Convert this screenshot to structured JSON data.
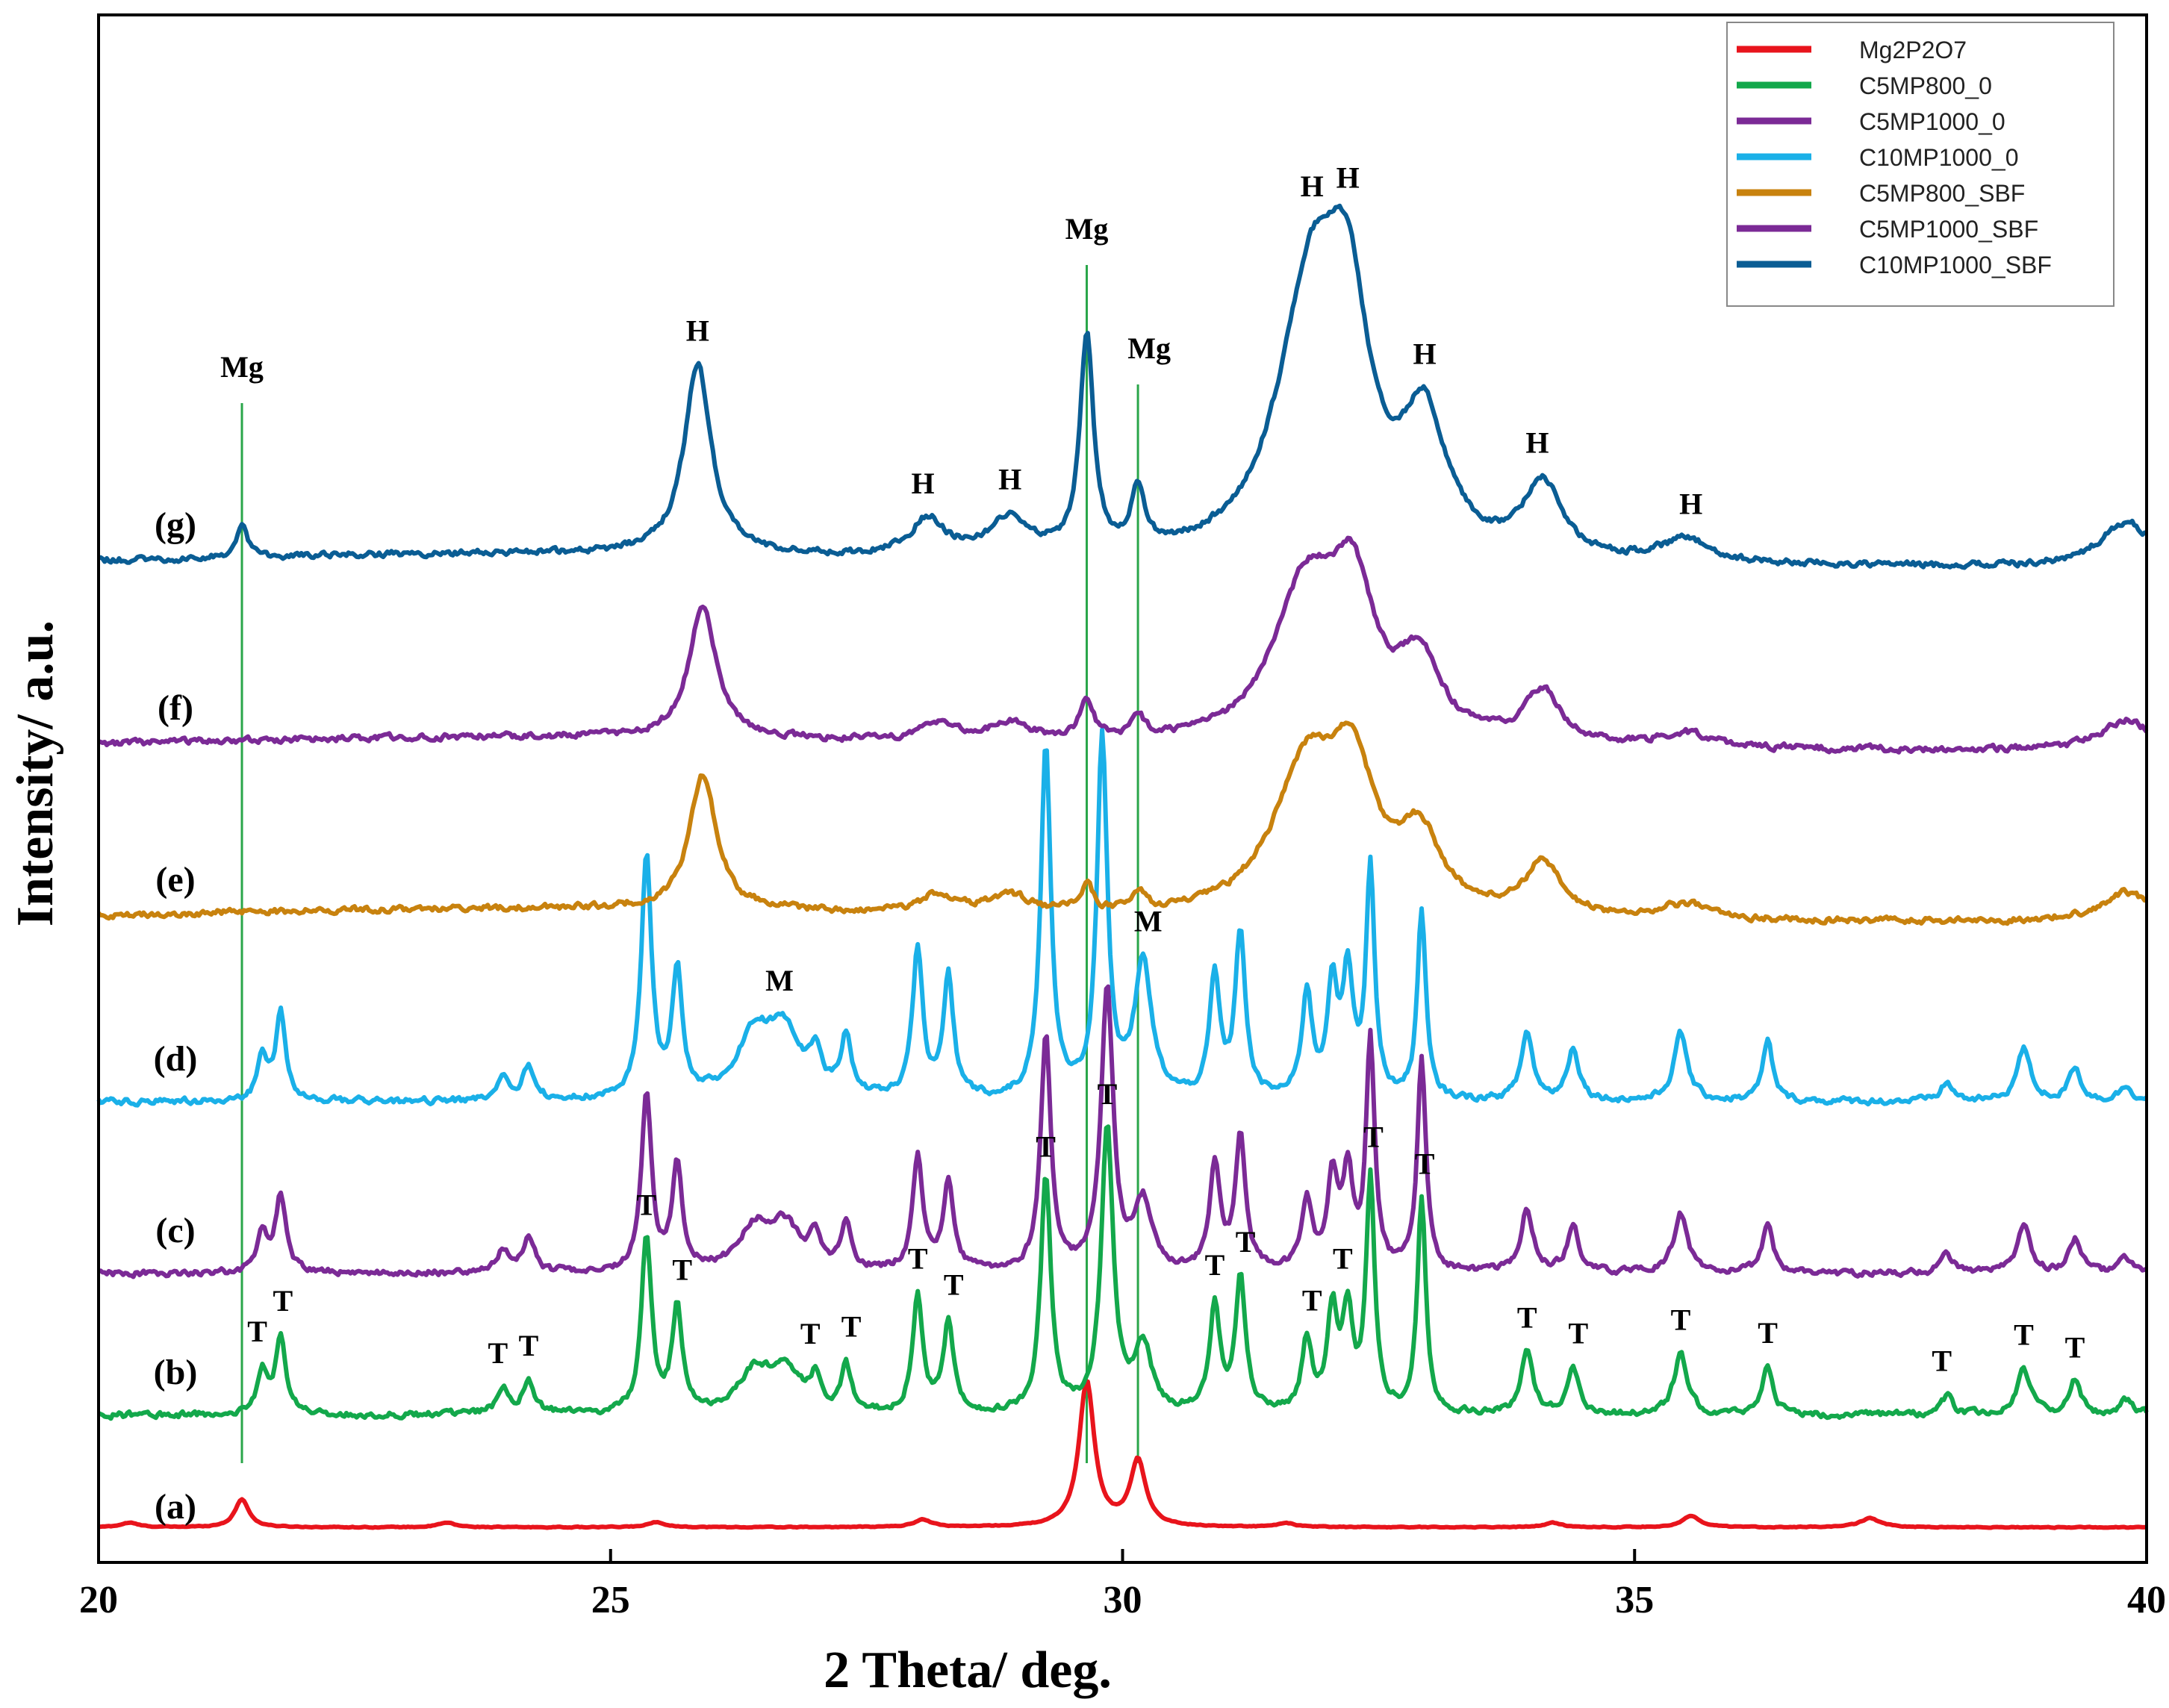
{
  "chart_data": {
    "type": "line",
    "title": "",
    "xlabel": "2 Theta/ deg.",
    "ylabel": "Intensity/ a.u.",
    "xlim": [
      20,
      40
    ],
    "xticks": [
      20,
      25,
      30,
      35,
      40
    ],
    "xtick_labels": [
      "20",
      "25",
      "30",
      "35",
      "40"
    ],
    "grid": false,
    "legend_position": "top-right",
    "series": [
      {
        "name": "Mg2P2O7",
        "tag": "(a)",
        "color": "#e8141c",
        "offset": 0,
        "peaks": [
          [
            21.4,
            38,
            0.08
          ],
          [
            29.65,
            195,
            0.09
          ],
          [
            30.15,
            88,
            0.09
          ],
          [
            35.55,
            15,
            0.1
          ],
          [
            37.3,
            12,
            0.12
          ],
          [
            20.3,
            6,
            0.1
          ],
          [
            23.4,
            6,
            0.1
          ],
          [
            25.45,
            7,
            0.1
          ],
          [
            28.05,
            10,
            0.1
          ],
          [
            31.6,
            5,
            0.1
          ],
          [
            34.2,
            6,
            0.1
          ]
        ]
      },
      {
        "name": "C5MP800_0",
        "tag": "(b)",
        "color": "#13a84b",
        "offset": 150,
        "peaks": [
          [
            21.6,
            55,
            0.06
          ],
          [
            21.78,
            105,
            0.06
          ],
          [
            23.95,
            35,
            0.07
          ],
          [
            24.2,
            45,
            0.07
          ],
          [
            25.35,
            235,
            0.06
          ],
          [
            25.65,
            140,
            0.06
          ],
          [
            26.4,
            50,
            0.18
          ],
          [
            26.7,
            60,
            0.18
          ],
          [
            27.0,
            40,
            0.06
          ],
          [
            27.3,
            60,
            0.06
          ],
          [
            28.0,
            155,
            0.06
          ],
          [
            28.3,
            120,
            0.06
          ],
          [
            29.25,
            315,
            0.06
          ],
          [
            29.85,
            380,
            0.07
          ],
          [
            30.2,
            90,
            0.1
          ],
          [
            30.9,
            140,
            0.06
          ],
          [
            31.15,
            180,
            0.06
          ],
          [
            31.8,
            95,
            0.06
          ],
          [
            32.05,
            130,
            0.06
          ],
          [
            32.2,
            130,
            0.06
          ],
          [
            32.42,
            310,
            0.05
          ],
          [
            32.92,
            290,
            0.05
          ],
          [
            33.95,
            85,
            0.07
          ],
          [
            34.4,
            60,
            0.07
          ],
          [
            35.45,
            80,
            0.08
          ],
          [
            36.3,
            70,
            0.06
          ],
          [
            38.05,
            25,
            0.07
          ],
          [
            38.8,
            60,
            0.08
          ],
          [
            39.3,
            45,
            0.07
          ],
          [
            39.8,
            20,
            0.08
          ]
        ]
      },
      {
        "name": "C5MP1000_0",
        "tag": "(c)",
        "color": "#7b2a96",
        "offset": 340,
        "peaks": [
          [
            21.6,
            55,
            0.06
          ],
          [
            21.78,
            105,
            0.06
          ],
          [
            23.95,
            30,
            0.07
          ],
          [
            24.2,
            45,
            0.07
          ],
          [
            25.35,
            235,
            0.06
          ],
          [
            25.65,
            140,
            0.06
          ],
          [
            26.4,
            55,
            0.18
          ],
          [
            26.7,
            60,
            0.18
          ],
          [
            27.0,
            40,
            0.06
          ],
          [
            27.3,
            60,
            0.06
          ],
          [
            28.0,
            155,
            0.06
          ],
          [
            28.3,
            120,
            0.06
          ],
          [
            29.25,
            315,
            0.06
          ],
          [
            29.85,
            380,
            0.07
          ],
          [
            30.2,
            90,
            0.1
          ],
          [
            30.9,
            140,
            0.06
          ],
          [
            31.15,
            180,
            0.06
          ],
          [
            31.8,
            95,
            0.06
          ],
          [
            32.05,
            120,
            0.06
          ],
          [
            32.2,
            125,
            0.06
          ],
          [
            32.42,
            310,
            0.05
          ],
          [
            32.92,
            290,
            0.05
          ],
          [
            33.95,
            85,
            0.07
          ],
          [
            34.4,
            60,
            0.07
          ],
          [
            35.45,
            80,
            0.08
          ],
          [
            36.3,
            70,
            0.06
          ],
          [
            38.05,
            25,
            0.07
          ],
          [
            38.8,
            60,
            0.08
          ],
          [
            39.3,
            45,
            0.07
          ],
          [
            39.8,
            20,
            0.08
          ]
        ]
      },
      {
        "name": "C10MP1000_0",
        "tag": "(d)",
        "color": "#1ab0e8",
        "offset": 570,
        "peaks": [
          [
            21.6,
            55,
            0.06
          ],
          [
            21.78,
            115,
            0.06
          ],
          [
            23.95,
            35,
            0.07
          ],
          [
            24.2,
            45,
            0.07
          ],
          [
            25.35,
            325,
            0.06
          ],
          [
            25.65,
            170,
            0.06
          ],
          [
            26.4,
            80,
            0.2
          ],
          [
            26.7,
            85,
            0.2
          ],
          [
            27.0,
            50,
            0.06
          ],
          [
            27.3,
            80,
            0.06
          ],
          [
            28.0,
            200,
            0.06
          ],
          [
            28.3,
            160,
            0.06
          ],
          [
            29.25,
            470,
            0.06
          ],
          [
            29.8,
            480,
            0.06
          ],
          [
            30.2,
            180,
            0.1
          ],
          [
            30.9,
            160,
            0.06
          ],
          [
            31.15,
            220,
            0.06
          ],
          [
            31.8,
            140,
            0.06
          ],
          [
            32.05,
            150,
            0.06
          ],
          [
            32.2,
            160,
            0.06
          ],
          [
            32.42,
            310,
            0.05
          ],
          [
            32.92,
            250,
            0.05
          ],
          [
            33.95,
            90,
            0.07
          ],
          [
            34.4,
            70,
            0.07
          ],
          [
            35.45,
            90,
            0.08
          ],
          [
            36.3,
            80,
            0.06
          ],
          [
            38.05,
            25,
            0.07
          ],
          [
            38.8,
            70,
            0.08
          ],
          [
            39.3,
            45,
            0.07
          ],
          [
            39.8,
            20,
            0.08
          ]
        ]
      },
      {
        "name": "C5MP800_SBF",
        "tag": "(e)",
        "color": "#c8820e",
        "offset": 810,
        "peaks": [
          [
            25.9,
            180,
            0.16
          ],
          [
            28.2,
            25,
            0.2
          ],
          [
            28.9,
            25,
            0.25
          ],
          [
            29.65,
            35,
            0.08
          ],
          [
            30.15,
            25,
            0.08
          ],
          [
            31.8,
            200,
            0.4
          ],
          [
            32.25,
            160,
            0.25
          ],
          [
            32.9,
            100,
            0.25
          ],
          [
            34.1,
            70,
            0.22
          ],
          [
            35.5,
            20,
            0.3
          ],
          [
            39.8,
            40,
            0.3
          ]
        ]
      },
      {
        "name": "C5MP1000_SBF",
        "tag": "(f)",
        "color": "#7b2a96",
        "offset": 1040,
        "peaks": [
          [
            25.9,
            180,
            0.16
          ],
          [
            28.2,
            25,
            0.2
          ],
          [
            28.9,
            25,
            0.25
          ],
          [
            29.65,
            55,
            0.08
          ],
          [
            30.15,
            30,
            0.08
          ],
          [
            31.8,
            210,
            0.4
          ],
          [
            32.25,
            170,
            0.25
          ],
          [
            32.9,
            100,
            0.25
          ],
          [
            34.1,
            70,
            0.22
          ],
          [
            35.5,
            20,
            0.3
          ],
          [
            39.8,
            40,
            0.3
          ]
        ]
      },
      {
        "name": "C10MP1000_SBF",
        "tag": "(g)",
        "color": "#0a5d94",
        "offset": 1285,
        "peaks": [
          [
            21.4,
            40,
            0.06
          ],
          [
            25.85,
            255,
            0.16
          ],
          [
            28.1,
            50,
            0.2
          ],
          [
            28.9,
            50,
            0.25
          ],
          [
            29.65,
            290,
            0.08
          ],
          [
            30.15,
            80,
            0.08
          ],
          [
            31.85,
            360,
            0.4
          ],
          [
            32.2,
            240,
            0.25
          ],
          [
            32.95,
            170,
            0.25
          ],
          [
            34.1,
            100,
            0.22
          ],
          [
            35.5,
            30,
            0.3
          ],
          [
            39.8,
            60,
            0.3
          ]
        ]
      }
    ],
    "curve_tags": [
      {
        "text": "(a)",
        "series": 0
      },
      {
        "text": "(b)",
        "series": 1
      },
      {
        "text": "(c)",
        "series": 2
      },
      {
        "text": "(d)",
        "series": 3
      },
      {
        "text": "(e)",
        "series": 4
      },
      {
        "text": "(f)",
        "series": 5
      },
      {
        "text": "(g)",
        "series": 6
      }
    ],
    "reference_lines": [
      {
        "x": 21.4,
        "label": "Mg",
        "color": "#2aa64a"
      },
      {
        "x": 29.65,
        "label": "Mg",
        "color": "#2aa64a"
      },
      {
        "x": 30.15,
        "label": "Mg",
        "color": "#2aa64a"
      }
    ],
    "peak_annotations": [
      {
        "text": "T",
        "x": 21.55,
        "series": 1,
        "dy": 30
      },
      {
        "text": "T",
        "x": 21.8,
        "series": 1,
        "dy": 30
      },
      {
        "text": "T",
        "x": 23.9,
        "series": 1,
        "dy": 30
      },
      {
        "text": "T",
        "x": 24.2,
        "series": 1,
        "dy": 30
      },
      {
        "text": "T",
        "x": 25.35,
        "series": 1,
        "dy": 30
      },
      {
        "text": "T",
        "x": 25.7,
        "series": 1,
        "dy": 30
      },
      {
        "text": "T",
        "x": 26.95,
        "series": 1,
        "dy": 30
      },
      {
        "text": "T",
        "x": 27.35,
        "series": 1,
        "dy": 30
      },
      {
        "text": "T",
        "x": 28.0,
        "series": 1,
        "dy": 30
      },
      {
        "text": "T",
        "x": 28.35,
        "series": 1,
        "dy": 30
      },
      {
        "text": "T",
        "x": 29.25,
        "series": 1,
        "dy": 30
      },
      {
        "text": "T",
        "x": 29.85,
        "series": 1,
        "dy": 30
      },
      {
        "text": "T",
        "x": 30.9,
        "series": 1,
        "dy": 30
      },
      {
        "text": "T",
        "x": 31.2,
        "series": 1,
        "dy": 30
      },
      {
        "text": "T",
        "x": 31.85,
        "series": 1,
        "dy": 30
      },
      {
        "text": "T",
        "x": 32.15,
        "series": 1,
        "dy": 30
      },
      {
        "text": "T",
        "x": 32.45,
        "series": 1,
        "dy": 30
      },
      {
        "text": "T",
        "x": 32.95,
        "series": 1,
        "dy": 30
      },
      {
        "text": "T",
        "x": 33.95,
        "series": 1,
        "dy": 30
      },
      {
        "text": "T",
        "x": 34.45,
        "series": 1,
        "dy": 30
      },
      {
        "text": "T",
        "x": 35.45,
        "series": 1,
        "dy": 30
      },
      {
        "text": "T",
        "x": 36.3,
        "series": 1,
        "dy": 30
      },
      {
        "text": "T",
        "x": 38.0,
        "series": 1,
        "dy": 30
      },
      {
        "text": "T",
        "x": 38.8,
        "series": 1,
        "dy": 30
      },
      {
        "text": "T",
        "x": 39.3,
        "series": 1,
        "dy": 30
      },
      {
        "text": "M",
        "x": 26.65,
        "series": 3,
        "dy": 30
      },
      {
        "text": "M",
        "x": 30.25,
        "series": 3,
        "dy": 30
      },
      {
        "text": "H",
        "x": 25.85,
        "series": 6,
        "dy": 30
      },
      {
        "text": "H",
        "x": 28.05,
        "series": 6,
        "dy": 30
      },
      {
        "text": "H",
        "x": 28.9,
        "series": 6,
        "dy": 30
      },
      {
        "text": "H",
        "x": 31.85,
        "series": 6,
        "dy": 30
      },
      {
        "text": "H",
        "x": 32.2,
        "series": 6,
        "dy": 30
      },
      {
        "text": "H",
        "x": 32.95,
        "series": 6,
        "dy": 30
      },
      {
        "text": "H",
        "x": 34.05,
        "series": 6,
        "dy": 30
      },
      {
        "text": "H",
        "x": 35.55,
        "series": 6,
        "dy": 30
      }
    ]
  }
}
